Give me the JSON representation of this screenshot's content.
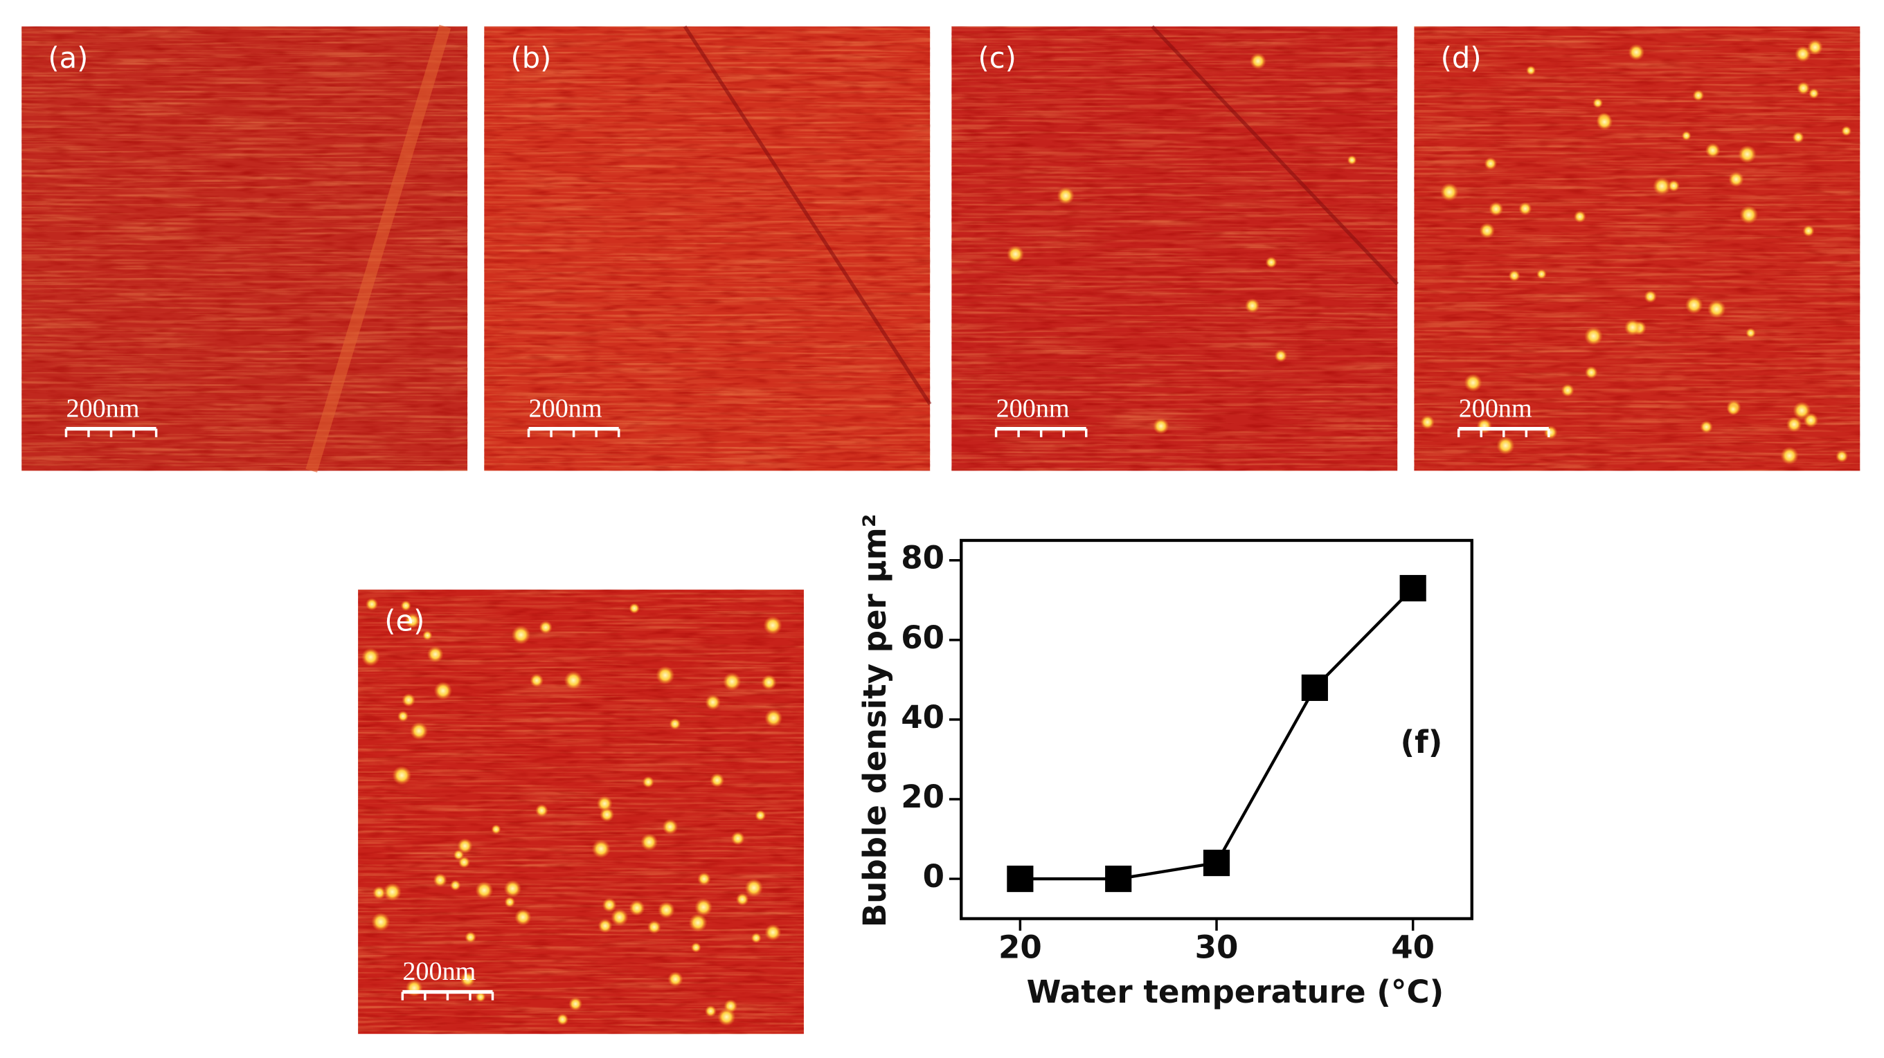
{
  "panels": [
    {
      "label": "(a)",
      "scale": "200nm"
    },
    {
      "label": "(b)",
      "scale": "200nm"
    },
    {
      "label": "(c)",
      "scale": "200nm"
    },
    {
      "label": "(d)",
      "scale": "200nm"
    },
    {
      "label": "(e)",
      "scale": "200nm"
    }
  ],
  "chart_data": {
    "type": "line",
    "x": [
      20,
      25,
      30,
      35,
      40
    ],
    "values": [
      0,
      0,
      4,
      48,
      73
    ],
    "color": "#000000",
    "x_label": "Water temperature (°C)",
    "y_label": "Bubble density per μm²",
    "annotation": "(f)",
    "xlim": [
      17,
      43
    ],
    "xticks": [
      20,
      30,
      40
    ],
    "ylim": [
      -10,
      85
    ],
    "yticks": [
      0,
      20,
      40,
      60,
      80
    ]
  }
}
